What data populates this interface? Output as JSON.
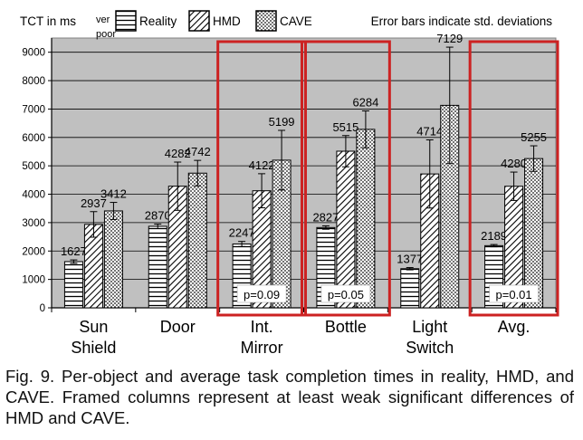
{
  "chart_data": {
    "type": "bar",
    "ylabel": "TCT in ms",
    "ylim": [
      0,
      9500
    ],
    "yticks": [
      0,
      1000,
      2000,
      3000,
      4000,
      5000,
      6000,
      7000,
      8000,
      9000
    ],
    "grid": true,
    "legend_position": "top",
    "note": "Error bars indicate std. deviations",
    "legend_extra_text": "ver poor",
    "categories": [
      "Sun\nShield",
      "Door",
      "Int.\nMirror",
      "Bottle",
      "Light\nSwitch",
      "Avg."
    ],
    "series": [
      {
        "name": "Reality",
        "pattern": "horizontal-stripes",
        "values": [
          1627,
          2870,
          2247,
          2827,
          1377,
          2189
        ],
        "std": [
          60,
          80,
          90,
          60,
          40,
          40
        ]
      },
      {
        "name": "HMD",
        "pattern": "diagonal-hatch",
        "values": [
          2937,
          4282,
          4122,
          5515,
          4714,
          4280
        ],
        "std": [
          450,
          850,
          600,
          550,
          1200,
          500
        ]
      },
      {
        "name": "CAVE",
        "pattern": "dots",
        "values": [
          3412,
          4742,
          5199,
          6284,
          7129,
          5255
        ],
        "std": [
          300,
          450,
          1050,
          650,
          2050,
          450
        ]
      }
    ],
    "framed_categories": [
      2,
      3,
      5
    ],
    "pvalues": {
      "2": "p=0.09",
      "3": "p=0.05",
      "5": "p=0.01"
    },
    "colors": {
      "plot_bg": "#c0c0c0",
      "frame": "#cc2222",
      "bar_fill": "#ffffff",
      "ink": "#000000"
    }
  },
  "caption": "Fig. 9. Per-object and average task completion times in reality, HMD, and CAVE. Framed columns represent at least weak significant differences of HMD and CAVE."
}
